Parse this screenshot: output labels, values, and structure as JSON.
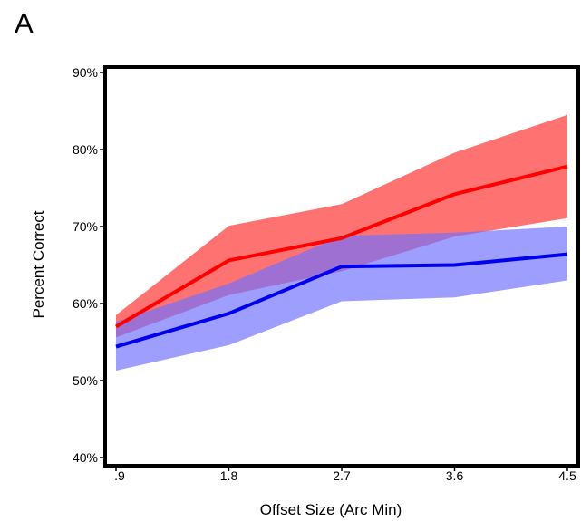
{
  "panel_label": "A",
  "chart_data": {
    "type": "line",
    "title": "",
    "xlabel": "Offset Size (Arc Min)",
    "ylabel": "Percent Correct",
    "x": [
      0.9,
      1.8,
      2.7,
      3.6,
      4.5
    ],
    "x_tick_labels": [
      ".9",
      "1.8",
      "2.7",
      "3.6",
      "4.5"
    ],
    "y_ticks": [
      40,
      50,
      60,
      70,
      80,
      90
    ],
    "y_tick_labels": [
      "40%",
      "50%",
      "60%",
      "70%",
      "80%",
      "90%"
    ],
    "xlim": [
      0.9,
      4.5
    ],
    "ylim": [
      40,
      90
    ],
    "grid": false,
    "legend": "none",
    "series": [
      {
        "color": "#ff0000",
        "band_color": "#ff6a6a",
        "values": [
          57.0,
          65.6,
          68.5,
          74.2,
          77.8
        ],
        "upper": [
          58.5,
          70.1,
          72.9,
          79.6,
          84.5
        ],
        "lower": [
          55.6,
          61.1,
          64.2,
          68.7,
          71.1
        ]
      },
      {
        "color": "#0000ee",
        "band_color": "#7070ff",
        "values": [
          54.4,
          58.7,
          64.8,
          65.0,
          66.4
        ],
        "upper": [
          57.6,
          62.6,
          68.8,
          69.2,
          70.0
        ],
        "lower": [
          51.3,
          54.6,
          60.3,
          60.8,
          63.0
        ]
      }
    ]
  }
}
